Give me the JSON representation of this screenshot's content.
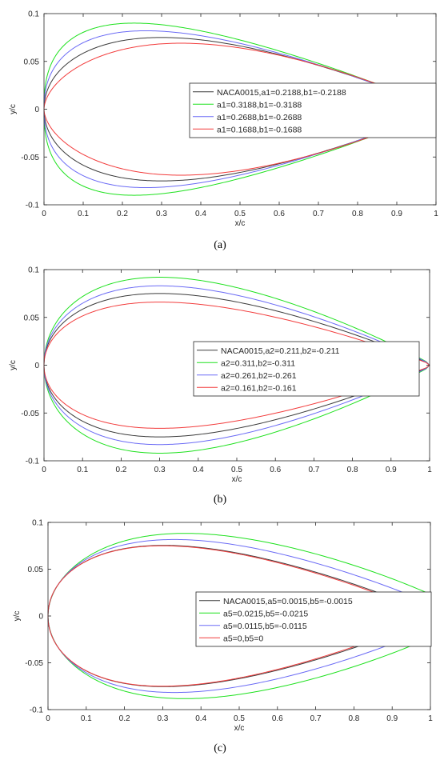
{
  "colors": {
    "black": "#3b3b3b",
    "green": "#1ee11e",
    "blue": "#6b6bf5",
    "red": "#f23c3c"
  },
  "chart_data": [
    {
      "type": "line",
      "caption": "(a)",
      "xlabel": "x/c",
      "ylabel": "y/c",
      "xlim": [
        0,
        1
      ],
      "ylim": [
        -0.1,
        0.1
      ],
      "x_ticks": [
        "0",
        "0.1",
        "0.2",
        "0.3",
        "0.4",
        "0.5",
        "0.6",
        "0.7",
        "0.8",
        "0.9",
        "1"
      ],
      "y_ticks": [
        "0.1",
        "0.05",
        "0",
        "-0.05",
        "-0.1"
      ],
      "legend_position": "center-right",
      "grid": false,
      "series": [
        {
          "name": "NACA0015,a1=0.2188,b1=-0.2188",
          "color": "#3b3b3b",
          "max_thickness": 0.075,
          "max_thickness_at": 0.3,
          "trailing_edge": 0
        },
        {
          "name": "a1=0.3188,b1=-0.3188",
          "color": "#1ee11e",
          "max_thickness": 0.09,
          "max_thickness_at": 0.23,
          "trailing_edge": 0
        },
        {
          "name": "a1=0.2688,b1=-0.2688",
          "color": "#6b6bf5",
          "max_thickness": 0.082,
          "max_thickness_at": 0.26,
          "trailing_edge": 0
        },
        {
          "name": "a1=0.1688,b1=-0.1688",
          "color": "#f23c3c",
          "max_thickness": 0.069,
          "max_thickness_at": 0.35,
          "trailing_edge": 0
        }
      ]
    },
    {
      "type": "line",
      "caption": "(b)",
      "xlabel": "x/c",
      "ylabel": "y/c",
      "xlim": [
        0,
        1
      ],
      "ylim": [
        -0.1,
        0.1
      ],
      "x_ticks": [
        "0",
        "0.1",
        "0.2",
        "0.3",
        "0.4",
        "0.5",
        "0.6",
        "0.7",
        "0.8",
        "0.9",
        "1"
      ],
      "y_ticks": [
        "0.1",
        "0.05",
        "0",
        "-0.05",
        "-0.1"
      ],
      "legend_position": "center-right",
      "grid": false,
      "series": [
        {
          "name": "NACA0015,a2=0.211,b2=-0.211",
          "color": "#3b3b3b",
          "max_thickness": 0.075,
          "max_thickness_at": 0.3,
          "trailing_edge": 0
        },
        {
          "name": "a2=0.311,b2=-0.311",
          "color": "#1ee11e",
          "max_thickness": 0.092,
          "max_thickness_at": 0.3,
          "trailing_edge": 0
        },
        {
          "name": "a2=0.261,b2=-0.261",
          "color": "#6b6bf5",
          "max_thickness": 0.083,
          "max_thickness_at": 0.3,
          "trailing_edge": 0
        },
        {
          "name": "a2=0.161,b2=-0.161",
          "color": "#f23c3c",
          "max_thickness": 0.066,
          "max_thickness_at": 0.3,
          "trailing_edge": 0
        }
      ]
    },
    {
      "type": "line",
      "caption": "(c)",
      "xlabel": "x/c",
      "ylabel": "y/c",
      "xlim": [
        0,
        1
      ],
      "ylim": [
        -0.1,
        0.1
      ],
      "x_ticks": [
        "0",
        "0.1",
        "0.2",
        "0.3",
        "0.4",
        "0.5",
        "0.6",
        "0.7",
        "0.8",
        "0.9",
        "1"
      ],
      "y_ticks": [
        "0.1",
        "0.05",
        "0",
        "-0.05",
        "-0.1"
      ],
      "legend_position": "center-right",
      "grid": false,
      "series": [
        {
          "name": "NACA0015,a5=0.0015,b5=-0.0015",
          "color": "#3b3b3b",
          "max_thickness": 0.075,
          "max_thickness_at": 0.3,
          "trailing_edge": 0.0015
        },
        {
          "name": "a5=0.0215,b5=-0.0215",
          "color": "#1ee11e",
          "max_thickness": 0.081,
          "max_thickness_at": 0.32,
          "trailing_edge": 0.0215
        },
        {
          "name": "a5=0.0115,b5=-0.0115",
          "color": "#6b6bf5",
          "max_thickness": 0.078,
          "max_thickness_at": 0.31,
          "trailing_edge": 0.0115
        },
        {
          "name": "a5=0,b5=0",
          "color": "#f23c3c",
          "max_thickness": 0.075,
          "max_thickness_at": 0.3,
          "trailing_edge": 0
        }
      ]
    }
  ]
}
